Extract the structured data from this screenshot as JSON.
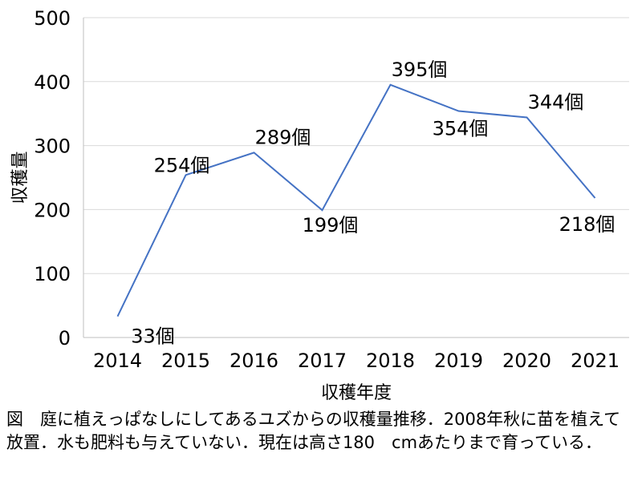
{
  "chart_data": {
    "type": "line",
    "title": "",
    "xlabel": "収穫年度",
    "ylabel": "収穫量",
    "categories": [
      "2014",
      "2015",
      "2016",
      "2017",
      "2018",
      "2019",
      "2020",
      "2021"
    ],
    "series": [
      {
        "values": [
          33,
          254,
          289,
          199,
          395,
          354,
          344,
          218
        ],
        "data_labels": [
          "33個",
          "254個",
          "289個",
          "199個",
          "395個",
          "354個",
          "344個",
          "218個"
        ],
        "color": "#4472C4"
      }
    ],
    "ylim": [
      0,
      500
    ],
    "yticks": [
      "0",
      "100",
      "200",
      "300",
      "400",
      "500"
    ],
    "grid": true,
    "legend": "none"
  },
  "caption": "図　庭に植えっぱなしにしてあるユズからの収穫量推移．2008年秋に苗を植えて放置．水も肥料も与えていない．現在は高さ180　cmあたりまで育っている．"
}
